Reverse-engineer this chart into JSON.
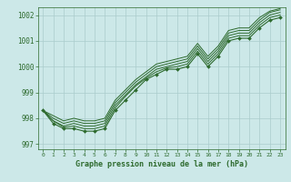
{
  "title": "Graphe pression niveau de la mer (hPa)",
  "bg_color": "#cce8e8",
  "grid_color": "#aacccc",
  "line_color": "#2d6a2d",
  "xlim": [
    -0.5,
    23.5
  ],
  "ylim": [
    996.8,
    1002.3
  ],
  "yticks": [
    997,
    998,
    999,
    1000,
    1001,
    1002
  ],
  "xticks": [
    0,
    1,
    2,
    3,
    4,
    5,
    6,
    7,
    8,
    9,
    10,
    11,
    12,
    13,
    14,
    15,
    16,
    17,
    18,
    19,
    20,
    21,
    22,
    23
  ],
  "lines": [
    [
      998.3,
      997.8,
      997.6,
      997.6,
      997.5,
      997.5,
      997.6,
      998.3,
      998.7,
      999.1,
      999.5,
      999.7,
      999.9,
      999.9,
      1000.0,
      1000.5,
      1000.0,
      1000.4,
      1001.0,
      1001.1,
      1001.1,
      1001.5,
      1001.8,
      1001.9
    ],
    [
      998.3,
      997.9,
      997.65,
      997.7,
      997.6,
      997.6,
      997.7,
      998.4,
      998.85,
      999.25,
      999.55,
      999.8,
      999.95,
      1000.0,
      1000.1,
      1000.6,
      1000.1,
      1000.5,
      1001.1,
      1001.2,
      1001.2,
      1001.6,
      1001.9,
      1002.0
    ],
    [
      998.3,
      997.9,
      997.7,
      997.8,
      997.7,
      997.7,
      997.8,
      998.5,
      998.9,
      999.3,
      999.6,
      999.9,
      1000.0,
      1000.1,
      1000.2,
      1000.7,
      1000.2,
      1000.6,
      1001.2,
      1001.3,
      1001.3,
      1001.7,
      1002.0,
      1002.1
    ],
    [
      998.3,
      998.0,
      997.8,
      997.9,
      997.8,
      997.8,
      997.9,
      998.6,
      999.0,
      999.4,
      999.7,
      1000.0,
      1000.1,
      1000.2,
      1000.3,
      1000.8,
      1000.3,
      1000.7,
      1001.3,
      1001.4,
      1001.4,
      1001.8,
      1002.1,
      1002.2
    ],
    [
      998.3,
      998.1,
      997.9,
      998.0,
      997.9,
      997.9,
      998.0,
      998.7,
      999.1,
      999.5,
      999.8,
      1000.1,
      1000.2,
      1000.3,
      1000.4,
      1000.9,
      1000.4,
      1000.8,
      1001.4,
      1001.5,
      1001.5,
      1001.9,
      1002.15,
      1002.25
    ]
  ]
}
